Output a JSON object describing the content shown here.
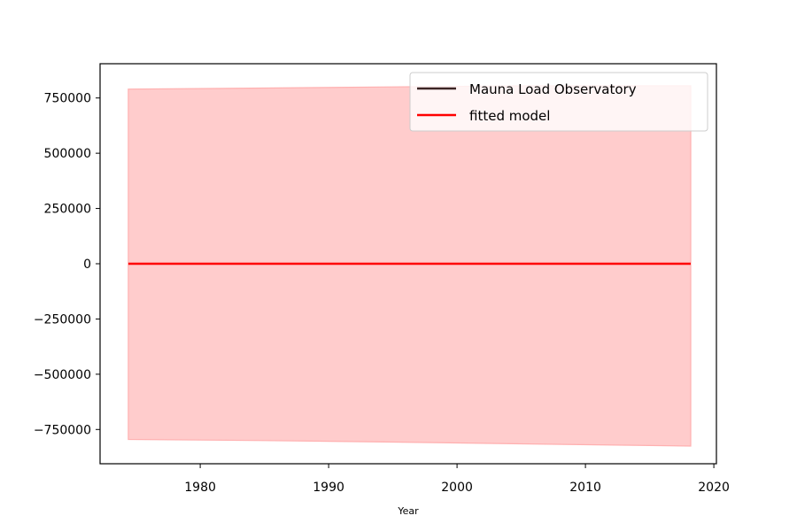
{
  "chart_data": {
    "type": "line",
    "title": "",
    "xlabel": "Year",
    "ylabel": "",
    "xlim": [
      1972.2,
      2020.2
    ],
    "ylim": [
      -905000,
      905000
    ],
    "x_ticks": [
      1980,
      1990,
      2000,
      2010,
      2020
    ],
    "y_ticks": [
      -750000,
      -500000,
      -250000,
      0,
      250000,
      500000,
      750000
    ],
    "x_tick_labels": [
      "1980",
      "1990",
      "2000",
      "2010",
      "2020"
    ],
    "y_tick_labels": [
      "−750000",
      "−500000",
      "−250000",
      "0",
      "250000",
      "500000",
      "750000"
    ],
    "grid": false,
    "legend_position": "top-right",
    "colors": {
      "observed": "#3b2424",
      "model": "#ff0000",
      "band_fill": "#ffcccc",
      "band_edge": "#ffb0b0"
    },
    "series": [
      {
        "name": "Mauna Load Observatory",
        "color": "#3b2424",
        "x": [],
        "y": []
      },
      {
        "name": "fitted model",
        "color": "#ff0000",
        "x": [
          1974.4,
          2018.2
        ],
        "y": [
          0,
          0
        ]
      }
    ],
    "band": {
      "x": [
        1974.4,
        1985,
        1995,
        2005,
        2018.2
      ],
      "upper": [
        790000,
        795000,
        800000,
        805000,
        805000
      ],
      "lower": [
        -795000,
        -800000,
        -807000,
        -815000,
        -825000
      ]
    }
  }
}
